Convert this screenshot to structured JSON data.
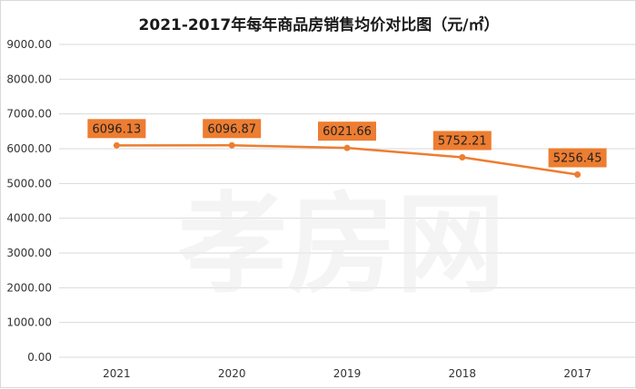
{
  "chart_data": {
    "type": "line",
    "title": "2021-2017年每年商品房销售均价对比图（元/㎡）",
    "categories": [
      "2021",
      "2020",
      "2019",
      "2018",
      "2017"
    ],
    "series": [
      {
        "values": [
          6096.13,
          6096.87,
          6021.66,
          5752.21,
          5256.45
        ],
        "labels": [
          "6096.13",
          "6096.87",
          "6021.66",
          "5752.21",
          "5256.45"
        ],
        "color": "#ed7d31"
      }
    ],
    "ylim": [
      0,
      9000
    ],
    "yticks": [
      "0.00",
      "1000.00",
      "2000.00",
      "3000.00",
      "4000.00",
      "5000.00",
      "6000.00",
      "7000.00",
      "8000.00",
      "9000.00"
    ],
    "grid": true,
    "gridColor": "#d9d9d9",
    "labelBoxColor": "#ed7d31",
    "legend": "none",
    "watermark": "孝房网"
  }
}
